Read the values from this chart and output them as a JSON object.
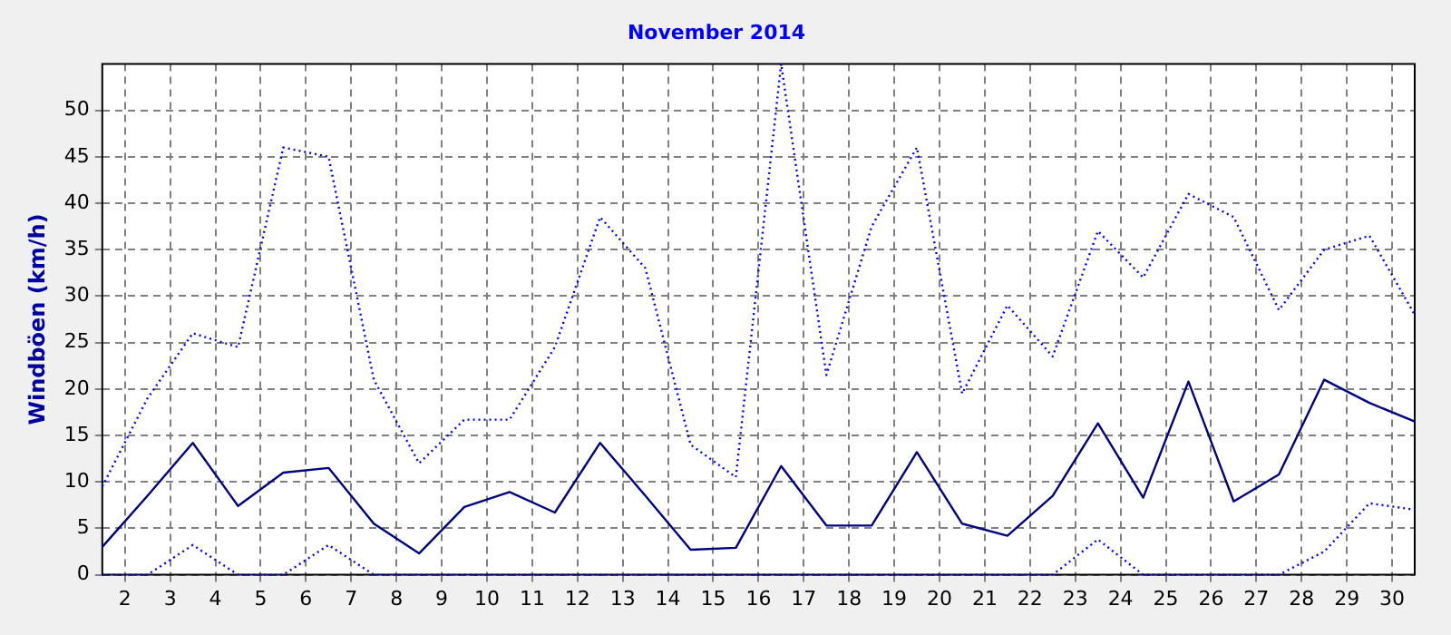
{
  "chart_data": {
    "type": "line",
    "title": "November 2014",
    "ylabel": "Windböen (km/h)",
    "x": [
      1.5,
      2.5,
      3.5,
      4.5,
      5.5,
      6.5,
      7.5,
      8.5,
      9.5,
      10.5,
      11.5,
      12.5,
      13.5,
      14.5,
      15.5,
      16.5,
      17.5,
      18.5,
      19.5,
      20.5,
      21.5,
      22.5,
      23.5,
      24.5,
      25.5,
      26.5,
      27.5,
      28.5,
      29.5,
      30.5
    ],
    "series": [
      {
        "color": "#0000ff",
        "line_style": "dotted",
        "values": [
          9.5,
          19,
          26,
          24.5,
          46,
          45,
          21,
          12,
          16.7,
          16.7,
          24.5,
          38.5,
          33,
          14,
          10.5,
          55,
          21.5,
          37.5,
          46,
          19.5,
          29,
          23.5,
          37,
          32,
          41,
          38.5,
          28.5,
          35,
          36.5,
          28
        ]
      },
      {
        "color": "#000080",
        "line_style": "solid",
        "values": [
          3,
          8.5,
          14.2,
          7.4,
          11,
          11.5,
          5.5,
          2.3,
          7.3,
          8.9,
          6.7,
          14.2,
          8.5,
          2.7,
          2.9,
          11.7,
          5.3,
          5.3,
          13.2,
          5.5,
          4.2,
          8.5,
          16.3,
          8.3,
          20.8,
          7.9,
          10.8,
          21,
          18.5,
          16.5
        ]
      },
      {
        "color": "#0000ff",
        "line_style": "dotted",
        "values": [
          0,
          0,
          3.2,
          0,
          0,
          3.2,
          0,
          0,
          0,
          0,
          0,
          0,
          0,
          0,
          0,
          0,
          0,
          0,
          0,
          0,
          0,
          0,
          3.8,
          0,
          0,
          0,
          0,
          2.5,
          7.7,
          7
        ]
      }
    ],
    "xlim": [
      1.5,
      30.5
    ],
    "xticks": [
      2,
      3,
      4,
      5,
      6,
      7,
      8,
      9,
      10,
      11,
      12,
      13,
      14,
      15,
      16,
      17,
      18,
      19,
      20,
      21,
      22,
      23,
      24,
      25,
      26,
      27,
      28,
      29,
      30
    ],
    "ylim": [
      0,
      55
    ],
    "yticks": [
      0,
      5,
      10,
      15,
      20,
      25,
      30,
      35,
      40,
      45,
      50
    ],
    "grid": true,
    "legend": false,
    "marker": "none"
  }
}
